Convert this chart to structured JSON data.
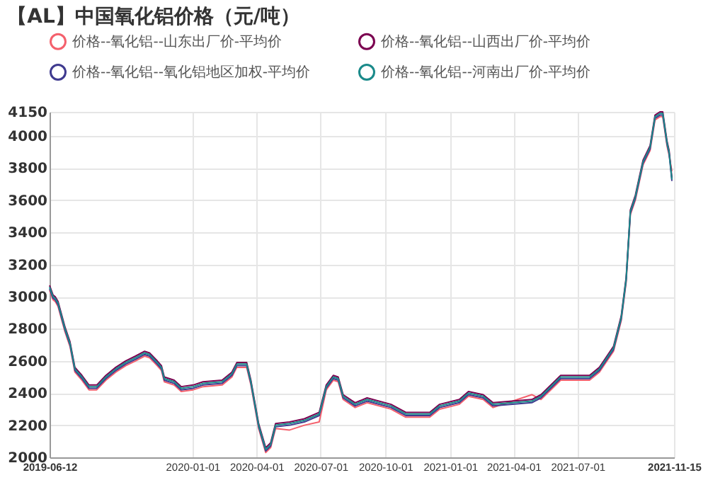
{
  "chart_data": {
    "type": "line",
    "title": "【AL】中国氧化铝价格（元/吨）",
    "x": [
      "2019-06-12",
      "2019-06-17",
      "2019-06-20",
      "2019-06-24",
      "2019-07-04",
      "2019-07-11",
      "2019-07-18",
      "2019-07-28",
      "2019-08-07",
      "2019-08-18",
      "2019-08-31",
      "2019-09-14",
      "2019-09-28",
      "2019-10-12",
      "2019-10-25",
      "2019-11-01",
      "2019-11-12",
      "2019-11-18",
      "2019-11-22",
      "2019-12-06",
      "2019-12-16",
      "2020-01-02",
      "2020-01-16",
      "2020-02-12",
      "2020-02-26",
      "2020-03-04",
      "2020-03-18",
      "2020-03-24",
      "2020-04-04",
      "2020-04-14",
      "2020-04-21",
      "2020-04-28",
      "2020-05-18",
      "2020-06-08",
      "2020-06-29",
      "2020-07-09",
      "2020-07-19",
      "2020-07-26",
      "2020-08-02",
      "2020-08-19",
      "2020-09-05",
      "2020-10-09",
      "2020-10-30",
      "2020-12-03",
      "2020-12-17",
      "2021-01-14",
      "2021-01-27",
      "2021-02-17",
      "2021-03-03",
      "2021-04-27",
      "2021-05-10",
      "2021-06-07",
      "2021-07-18",
      "2021-08-01",
      "2021-08-21",
      "2021-09-01",
      "2021-09-08",
      "2021-09-14",
      "2021-09-21",
      "2021-10-02",
      "2021-10-12",
      "2021-10-19",
      "2021-10-26",
      "2021-10-30",
      "2021-11-05",
      "2021-11-08",
      "2021-11-12"
    ],
    "series": [
      {
        "name": "价格--氧化铝--山东出厂价-平均价",
        "color": "#f4606c",
        "values": [
          3040,
          2980,
          2970,
          2940,
          2780,
          2690,
          2530,
          2480,
          2420,
          2420,
          2480,
          2530,
          2570,
          2600,
          2630,
          2620,
          2570,
          2540,
          2470,
          2450,
          2410,
          2420,
          2440,
          2450,
          2500,
          2560,
          2560,
          2450,
          2180,
          2030,
          2060,
          2180,
          2170,
          2200,
          2220,
          2420,
          2480,
          2470,
          2360,
          2310,
          2340,
          2300,
          2250,
          2250,
          2300,
          2330,
          2380,
          2360,
          2310,
          2390,
          2360,
          2480,
          2480,
          2530,
          2660,
          2850,
          3090,
          3510,
          3600,
          3820,
          3910,
          4100,
          4120,
          4120,
          3940,
          3880,
          3780
        ]
      },
      {
        "name": "价格--氧化铝--山西出厂价-平均价",
        "color": "#7b0050",
        "values": [
          3070,
          3010,
          3000,
          2970,
          2810,
          2720,
          2560,
          2510,
          2450,
          2450,
          2510,
          2560,
          2600,
          2630,
          2660,
          2650,
          2600,
          2570,
          2500,
          2480,
          2440,
          2450,
          2470,
          2480,
          2530,
          2590,
          2590,
          2480,
          2210,
          2060,
          2090,
          2210,
          2220,
          2240,
          2280,
          2450,
          2510,
          2500,
          2390,
          2340,
          2370,
          2330,
          2280,
          2280,
          2330,
          2360,
          2410,
          2390,
          2340,
          2360,
          2390,
          2510,
          2510,
          2560,
          2690,
          2880,
          3120,
          3540,
          3630,
          3850,
          3940,
          4130,
          4150,
          4150,
          3970,
          3910,
          3740
        ]
      },
      {
        "name": "价格--氧化铝--氧化铝地区加权-平均价",
        "color": "#3f3a8f",
        "values": [
          3050,
          2990,
          2980,
          2950,
          2790,
          2700,
          2540,
          2490,
          2430,
          2430,
          2490,
          2540,
          2580,
          2610,
          2640,
          2630,
          2580,
          2550,
          2480,
          2460,
          2420,
          2430,
          2450,
          2460,
          2510,
          2570,
          2570,
          2460,
          2190,
          2040,
          2070,
          2190,
          2200,
          2220,
          2260,
          2430,
          2490,
          2480,
          2370,
          2320,
          2350,
          2310,
          2260,
          2260,
          2310,
          2340,
          2390,
          2370,
          2320,
          2340,
          2370,
          2490,
          2490,
          2540,
          2670,
          2860,
          3100,
          3520,
          3610,
          3830,
          3920,
          4110,
          4130,
          4130,
          3950,
          3890,
          3720
        ]
      },
      {
        "name": "价格--氧化铝--河南出厂价-平均价",
        "color": "#1a8a8a",
        "values": [
          3060,
          3000,
          2990,
          2960,
          2800,
          2710,
          2550,
          2500,
          2440,
          2440,
          2500,
          2550,
          2590,
          2620,
          2650,
          2640,
          2590,
          2560,
          2490,
          2470,
          2430,
          2440,
          2460,
          2470,
          2520,
          2580,
          2580,
          2470,
          2200,
          2050,
          2080,
          2200,
          2210,
          2230,
          2270,
          2440,
          2500,
          2490,
          2380,
          2330,
          2360,
          2320,
          2270,
          2270,
          2320,
          2350,
          2400,
          2380,
          2330,
          2350,
          2380,
          2500,
          2500,
          2550,
          2680,
          2870,
          3110,
          3530,
          3620,
          3840,
          3930,
          4120,
          4140,
          4140,
          3960,
          3900,
          3730
        ]
      }
    ],
    "xlim": [
      "2019-06-12",
      "2021-11-15"
    ],
    "xticks": [
      "2019-06-12",
      "2020-01-01",
      "2020-04-01",
      "2020-07-01",
      "2020-10-01",
      "2021-01-01",
      "2021-04-01",
      "2021-07-01",
      "2021-11-15"
    ],
    "ylim": [
      2000,
      4150
    ],
    "yticks": [
      2000,
      2200,
      2400,
      2600,
      2800,
      3000,
      3200,
      3400,
      3600,
      3800,
      4000,
      4150
    ],
    "grid": true,
    "legend": "top",
    "line_style": "solid"
  }
}
